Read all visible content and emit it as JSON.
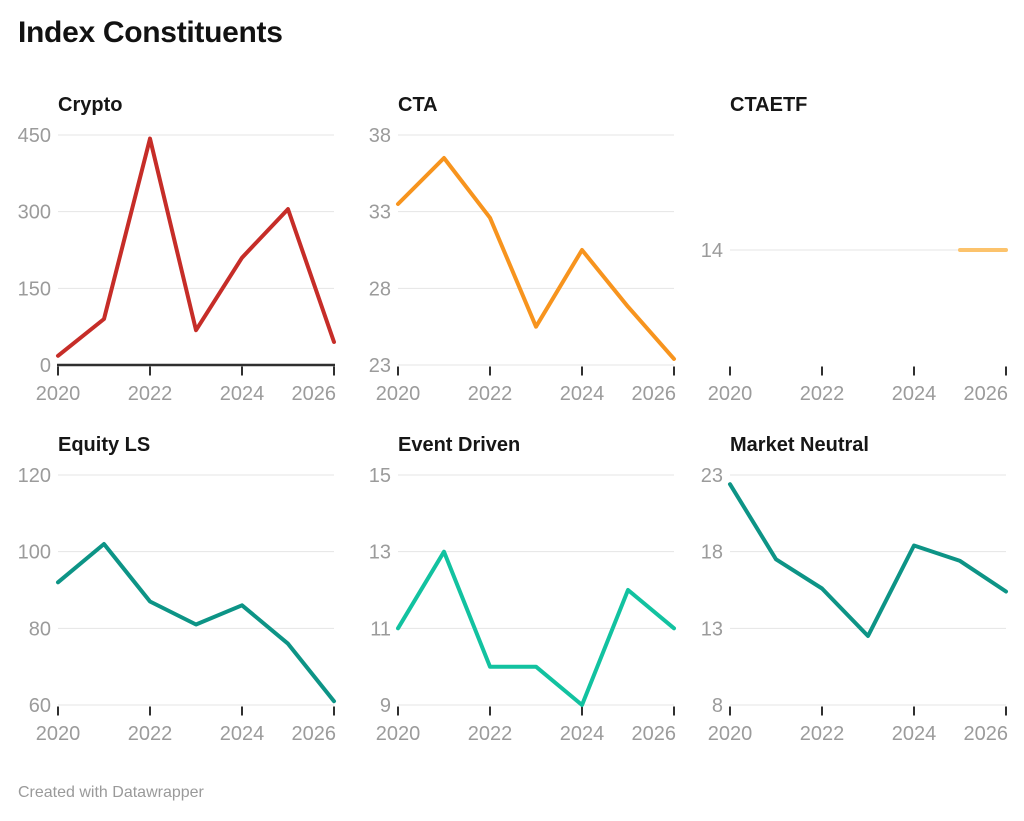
{
  "page": {
    "title": "Index Constituents",
    "footer": "Created with Datawrapper"
  },
  "theme": {
    "background": "#ffffff",
    "grid_color": "#e4e4e4",
    "axis_color": "#2f2f2f",
    "tick_label_color": "#9b9b9b",
    "panel_title_color": "#161616",
    "title_color": "#121212",
    "footer_color": "#9a9a9a"
  },
  "chart_data": {
    "type": "line",
    "layout": "small-multiples-3x2",
    "title": "Index Constituents",
    "x": [
      2020,
      2021,
      2022,
      2023,
      2024,
      2025,
      2026
    ],
    "x_ticks": [
      2020,
      2022,
      2024,
      2026
    ],
    "x_range": [
      2020,
      2026
    ],
    "grid": true,
    "legend": "none",
    "panels": [
      {
        "title": "Crypto",
        "color": "#c62d28",
        "y_ticks": [
          0,
          150,
          300,
          450
        ],
        "y_range": [
          0,
          450
        ],
        "zero_baseline": true,
        "values": [
          18,
          90,
          443,
          68,
          210,
          305,
          45
        ]
      },
      {
        "title": "CTA",
        "color": "#f7941e",
        "y_ticks": [
          23,
          28,
          33,
          38
        ],
        "y_range": [
          23,
          38
        ],
        "zero_baseline": false,
        "values": [
          33.5,
          36.5,
          32.6,
          25.5,
          30.5,
          26.8,
          23.4
        ]
      },
      {
        "title": "CTAETF",
        "color": "#fcc36c",
        "y_ticks": [
          14
        ],
        "y_range": [
          13,
          15
        ],
        "zero_baseline": false,
        "values": [
          null,
          null,
          null,
          null,
          null,
          14,
          14
        ]
      },
      {
        "title": "Equity LS",
        "color": "#0d9486",
        "y_ticks": [
          60,
          80,
          100,
          120
        ],
        "y_range": [
          60,
          120
        ],
        "zero_baseline": false,
        "values": [
          92,
          102,
          87,
          81,
          86,
          76,
          61
        ]
      },
      {
        "title": "Event Driven",
        "color": "#12c2a0",
        "y_ticks": [
          9,
          11,
          13,
          15
        ],
        "y_range": [
          9,
          15
        ],
        "zero_baseline": false,
        "values": [
          11,
          13,
          10,
          10,
          9,
          12,
          11
        ]
      },
      {
        "title": "Market Neutral",
        "color": "#0d9486",
        "y_ticks": [
          8,
          13,
          18,
          23
        ],
        "y_range": [
          8,
          23
        ],
        "zero_baseline": false,
        "values": [
          22.4,
          17.5,
          15.6,
          12.5,
          18.4,
          17.4,
          15.4
        ]
      }
    ]
  }
}
